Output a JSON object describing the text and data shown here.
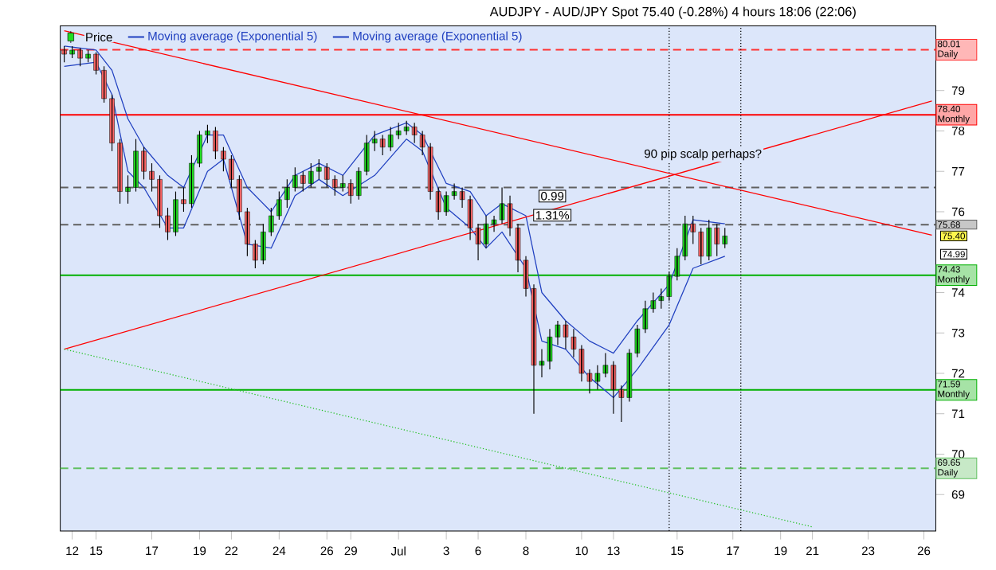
{
  "chart_data": {
    "type": "candlestick",
    "title": "AUDJPY - AUD/JPY Spot    75.40 (-0.28%)    4 hours    18:06 (22:06)",
    "categories": [
      null,
      "12",
      null,
      null,
      "15",
      null,
      null,
      null,
      null,
      null,
      null,
      "17",
      null,
      null,
      null,
      null,
      null,
      "19",
      null,
      null,
      null,
      "22",
      null,
      null,
      null,
      null,
      null,
      "24",
      null,
      null,
      null,
      null,
      null,
      "26",
      null,
      null,
      "29",
      null,
      null,
      null,
      null,
      null,
      "Jul",
      null,
      null,
      null,
      null,
      null,
      "3",
      null,
      null,
      null,
      "6",
      null,
      null,
      null,
      null,
      null,
      "8",
      null,
      null,
      null,
      null,
      null,
      null,
      "10",
      null,
      null,
      null,
      "13",
      null,
      null,
      null,
      null,
      null,
      null,
      null,
      "15",
      null,
      null,
      null,
      null,
      null,
      null,
      "17",
      null,
      null,
      null,
      null,
      null,
      "19",
      null,
      null,
      null,
      "21",
      null,
      null,
      null,
      null,
      null,
      null,
      "23",
      null,
      null,
      null,
      null,
      null,
      null,
      "26",
      null
    ],
    "ylim": [
      68.1,
      80.6
    ],
    "yticks": [
      69,
      70,
      71,
      72,
      73,
      74,
      76,
      77,
      78,
      79
    ],
    "legend": "top left",
    "series": [
      {
        "name": "Price",
        "ohlc": [
          [
            80.0,
            80.1,
            79.7,
            79.9
          ],
          [
            79.9,
            80.1,
            79.8,
            80.0
          ],
          [
            80.0,
            80.05,
            79.6,
            79.8
          ],
          [
            79.8,
            80.0,
            79.7,
            79.9
          ],
          [
            79.9,
            79.95,
            79.4,
            79.5
          ],
          [
            79.5,
            79.6,
            78.7,
            78.8
          ],
          [
            78.8,
            78.9,
            77.5,
            77.7
          ],
          [
            77.7,
            77.8,
            76.2,
            76.5
          ],
          [
            76.5,
            76.9,
            76.2,
            76.6
          ],
          [
            76.6,
            77.8,
            76.5,
            77.5
          ],
          [
            77.5,
            77.6,
            76.8,
            77.0
          ],
          [
            77.0,
            77.2,
            76.5,
            76.8
          ],
          [
            76.8,
            76.9,
            75.6,
            75.9
          ],
          [
            75.9,
            76.1,
            75.3,
            75.5
          ],
          [
            75.5,
            76.5,
            75.4,
            76.3
          ],
          [
            76.3,
            76.6,
            76.0,
            76.2
          ],
          [
            76.2,
            77.4,
            76.1,
            77.2
          ],
          [
            77.2,
            78.0,
            77.1,
            77.9
          ],
          [
            77.9,
            78.15,
            77.7,
            78.0
          ],
          [
            78.0,
            78.1,
            77.3,
            77.5
          ],
          [
            77.5,
            77.6,
            77.0,
            77.3
          ],
          [
            77.3,
            77.4,
            76.6,
            76.8
          ],
          [
            76.8,
            76.9,
            75.8,
            76.0
          ],
          [
            76.0,
            76.1,
            74.9,
            75.2
          ],
          [
            75.2,
            75.3,
            74.6,
            74.8
          ],
          [
            74.8,
            75.7,
            74.7,
            75.5
          ],
          [
            75.5,
            76.1,
            75.4,
            75.9
          ],
          [
            75.9,
            76.5,
            75.8,
            76.3
          ],
          [
            76.3,
            76.8,
            76.1,
            76.6
          ],
          [
            76.6,
            77.1,
            76.5,
            76.9
          ],
          [
            76.9,
            77.0,
            76.5,
            76.7
          ],
          [
            76.7,
            77.2,
            76.6,
            77.0
          ],
          [
            77.0,
            77.3,
            76.8,
            77.1
          ],
          [
            77.1,
            77.2,
            76.6,
            76.8
          ],
          [
            76.8,
            76.9,
            76.4,
            76.6
          ],
          [
            76.6,
            76.9,
            76.5,
            76.7
          ],
          [
            76.7,
            76.8,
            76.2,
            76.4
          ],
          [
            76.4,
            77.1,
            76.3,
            77.0
          ],
          [
            77.0,
            77.9,
            76.9,
            77.7
          ],
          [
            77.7,
            78.0,
            77.5,
            77.8
          ],
          [
            77.8,
            77.9,
            77.4,
            77.6
          ],
          [
            77.6,
            78.1,
            77.5,
            77.9
          ],
          [
            77.9,
            78.2,
            77.8,
            78.0
          ],
          [
            78.0,
            78.25,
            77.9,
            78.1
          ],
          [
            78.1,
            78.2,
            77.7,
            77.9
          ],
          [
            77.9,
            78.0,
            77.4,
            77.6
          ],
          [
            77.6,
            77.7,
            76.3,
            76.5
          ],
          [
            76.5,
            76.6,
            75.8,
            76.0
          ],
          [
            76.0,
            76.5,
            75.9,
            76.4
          ],
          [
            76.4,
            76.7,
            76.3,
            76.5
          ],
          [
            76.5,
            76.6,
            76.1,
            76.3
          ],
          [
            76.3,
            76.4,
            75.3,
            75.6
          ],
          [
            75.6,
            75.7,
            74.8,
            75.2
          ],
          [
            75.2,
            75.9,
            75.1,
            75.7
          ],
          [
            75.7,
            75.9,
            75.5,
            75.8
          ],
          [
            75.8,
            76.6,
            75.7,
            76.2
          ],
          [
            76.2,
            76.4,
            75.4,
            75.6
          ],
          [
            75.6,
            75.7,
            74.5,
            74.8
          ],
          [
            74.8,
            74.9,
            73.9,
            74.1
          ],
          [
            74.1,
            74.2,
            71.0,
            72.2
          ],
          [
            72.2,
            72.6,
            71.9,
            72.3
          ],
          [
            72.3,
            73.1,
            72.1,
            72.9
          ],
          [
            72.9,
            73.3,
            72.7,
            73.2
          ],
          [
            73.2,
            73.3,
            72.6,
            72.9
          ],
          [
            72.9,
            73.1,
            72.4,
            72.6
          ],
          [
            72.6,
            72.7,
            71.8,
            72.0
          ],
          [
            72.0,
            72.1,
            71.5,
            71.8
          ],
          [
            71.8,
            72.2,
            71.6,
            72.0
          ],
          [
            72.0,
            72.5,
            71.9,
            72.2
          ],
          [
            72.2,
            72.3,
            71.0,
            71.6
          ],
          [
            71.6,
            71.7,
            70.8,
            71.4
          ],
          [
            71.4,
            72.6,
            71.3,
            72.5
          ],
          [
            72.5,
            73.2,
            72.4,
            73.1
          ],
          [
            73.1,
            73.8,
            73.0,
            73.6
          ],
          [
            73.6,
            74.0,
            73.5,
            73.8
          ],
          [
            73.8,
            74.1,
            73.6,
            73.9
          ],
          [
            73.9,
            74.5,
            73.8,
            74.4
          ],
          [
            74.4,
            75.1,
            74.3,
            74.9
          ],
          [
            74.9,
            75.9,
            74.8,
            75.7
          ],
          [
            75.7,
            75.9,
            75.2,
            75.5
          ],
          [
            75.5,
            75.6,
            74.7,
            74.9
          ],
          [
            74.9,
            75.8,
            74.8,
            75.6
          ],
          [
            75.6,
            75.7,
            74.9,
            75.2
          ],
          [
            75.2,
            75.6,
            75.1,
            75.4
          ],
          null,
          null,
          null,
          null,
          null,
          null,
          null,
          null,
          null,
          null,
          null,
          null,
          null,
          null,
          null,
          null,
          null,
          null,
          null,
          null,
          null,
          null,
          null,
          null,
          null,
          null
        ]
      },
      {
        "name": "Moving average (Exponential 5)",
        "type": "line",
        "color": "#2040c0",
        "values": [
          80.1,
          null,
          null,
          null,
          80.0,
          null,
          79.5,
          null,
          78.3,
          null,
          77.6,
          null,
          null,
          76.9,
          null,
          76.6,
          null,
          null,
          77.9,
          null,
          77.9,
          null,
          null,
          76.6,
          null,
          null,
          76.0,
          null,
          null,
          76.9,
          null,
          null,
          77.2,
          null,
          null,
          76.9,
          null,
          null,
          null,
          77.9,
          null,
          null,
          null,
          78.2,
          null,
          77.9,
          null,
          null,
          76.7,
          null,
          null,
          76.5,
          null,
          75.9,
          null,
          76.2,
          null,
          null,
          75.9,
          null,
          74.0,
          null,
          null,
          73.3,
          null,
          null,
          72.8,
          null,
          null,
          72.5,
          null,
          null,
          73.3,
          null,
          null,
          null,
          74.2,
          null,
          null,
          75.8,
          null,
          null,
          null,
          75.7,
          null,
          null,
          null,
          null,
          null,
          null,
          null,
          null,
          null,
          null,
          null,
          null,
          null,
          null,
          null,
          null,
          null,
          null,
          null,
          null,
          null,
          null,
          null,
          null,
          null,
          null
        ]
      },
      {
        "name": "Moving average (Exponential 5)",
        "type": "line",
        "color": "#2040c0",
        "values": [
          79.6,
          null,
          null,
          null,
          79.7,
          null,
          78.9,
          null,
          77.0,
          null,
          76.6,
          null,
          null,
          75.6,
          null,
          75.6,
          null,
          null,
          77.0,
          null,
          77.3,
          null,
          null,
          75.2,
          null,
          null,
          75.1,
          null,
          null,
          76.4,
          null,
          null,
          76.8,
          null,
          null,
          76.4,
          null,
          null,
          null,
          76.9,
          null,
          null,
          null,
          77.8,
          null,
          77.5,
          null,
          null,
          76.1,
          null,
          null,
          75.6,
          null,
          75.1,
          null,
          75.5,
          null,
          null,
          74.6,
          null,
          72.8,
          null,
          null,
          72.6,
          null,
          null,
          71.9,
          null,
          null,
          71.4,
          null,
          null,
          72.1,
          null,
          null,
          null,
          73.2,
          null,
          null,
          74.6,
          null,
          null,
          null,
          74.9,
          null,
          null,
          null,
          null,
          null,
          null,
          null,
          null,
          null,
          null,
          null,
          null,
          null,
          null,
          null,
          null,
          null,
          null,
          null,
          null,
          null,
          null,
          null,
          null,
          null,
          null
        ]
      },
      {
        "type": "line",
        "color": "#ff0000",
        "line_style": "solid",
        "values": [
          80.48,
          null,
          null,
          null,
          null,
          null,
          null,
          null,
          null,
          null,
          null,
          null,
          null,
          null,
          null,
          null,
          null,
          null,
          null,
          null,
          null,
          null,
          null,
          null,
          null,
          null,
          null,
          null,
          null,
          null,
          null,
          null,
          null,
          null,
          null,
          null,
          null,
          null,
          null,
          null,
          null,
          null,
          null,
          null,
          null,
          null,
          null,
          null,
          null,
          null,
          null,
          null,
          null,
          null,
          null,
          null,
          null,
          null,
          null,
          null,
          null,
          null,
          null,
          null,
          null,
          null,
          null,
          null,
          null,
          null,
          null,
          null,
          null,
          null,
          null,
          null,
          null,
          null,
          null,
          null,
          null,
          null,
          null,
          null,
          null,
          null,
          null,
          null,
          null,
          null,
          null,
          null,
          null,
          null,
          null,
          null,
          null,
          null,
          null,
          null,
          null,
          null,
          null,
          null,
          null,
          null,
          null,
          null,
          null,
          75.42
        ]
      },
      {
        "type": "line",
        "color": "#ff0000",
        "line_style": "solid",
        "values": [
          72.6,
          null,
          null,
          null,
          null,
          null,
          null,
          null,
          null,
          null,
          null,
          null,
          null,
          null,
          null,
          null,
          null,
          null,
          null,
          null,
          null,
          null,
          null,
          null,
          null,
          null,
          null,
          null,
          null,
          null,
          null,
          null,
          null,
          null,
          null,
          null,
          null,
          null,
          null,
          null,
          null,
          null,
          null,
          null,
          null,
          null,
          null,
          null,
          null,
          null,
          null,
          null,
          null,
          null,
          null,
          null,
          null,
          null,
          null,
          null,
          null,
          null,
          null,
          null,
          null,
          null,
          null,
          null,
          null,
          null,
          null,
          null,
          null,
          null,
          null,
          null,
          null,
          null,
          null,
          null,
          null,
          null,
          null,
          null,
          null,
          null,
          null,
          null,
          null,
          null,
          null,
          null,
          null,
          null,
          null,
          null,
          null,
          null,
          null,
          null,
          null,
          null,
          null,
          null,
          null,
          null,
          null,
          null,
          null,
          78.74
        ]
      },
      {
        "type": "line",
        "color": "#20c020",
        "line_style": "dotted",
        "values": [
          72.6,
          null,
          null,
          null,
          null,
          null,
          null,
          null,
          null,
          null,
          null,
          null,
          null,
          null,
          null,
          null,
          null,
          null,
          null,
          null,
          null,
          null,
          null,
          null,
          null,
          null,
          null,
          null,
          null,
          null,
          null,
          null,
          null,
          null,
          null,
          null,
          null,
          null,
          null,
          null,
          null,
          null,
          null,
          null,
          null,
          null,
          null,
          null,
          null,
          null,
          null,
          null,
          null,
          null,
          null,
          null,
          null,
          null,
          null,
          null,
          null,
          null,
          null,
          null,
          null,
          null,
          null,
          null,
          null,
          null,
          null,
          null,
          null,
          null,
          null,
          null,
          null,
          null,
          null,
          null,
          null,
          null,
          null,
          null,
          null,
          null,
          null,
          null,
          null,
          null,
          null,
          null,
          null,
          null,
          68.2,
          null,
          null,
          null,
          null,
          null,
          null,
          null,
          null,
          null,
          null,
          null,
          null,
          null,
          null,
          null
        ]
      }
    ],
    "ref_lines": [
      {
        "axis": "y",
        "value": 80.01,
        "label": "80.01 Daily",
        "color": "#ff3030",
        "line_style": "dashed"
      },
      {
        "axis": "y",
        "value": 78.4,
        "label": "78.40 Monthly",
        "color": "#ff0000",
        "line_style": "solid"
      },
      {
        "axis": "y",
        "value": 76.6,
        "color": "#606060",
        "line_style": "dashed"
      },
      {
        "axis": "y",
        "value": 75.68,
        "label": "75.68",
        "color": "#606060",
        "line_style": "dashed"
      },
      {
        "axis": "y",
        "value": 74.43,
        "label": "74.43 Monthly",
        "color": "#00b000",
        "line_style": "solid"
      },
      {
        "axis": "y",
        "value": 71.59,
        "label": "71.59 Monthly",
        "color": "#00b000",
        "line_style": "solid"
      },
      {
        "axis": "y",
        "value": 69.65,
        "label": "69.65 Daily",
        "color": "#60c060",
        "line_style": "dashed"
      }
    ],
    "annotations": [
      "90 pip scalp perhaps?",
      "0.99",
      "1.31%",
      "75.40",
      "74.99"
    ]
  }
}
